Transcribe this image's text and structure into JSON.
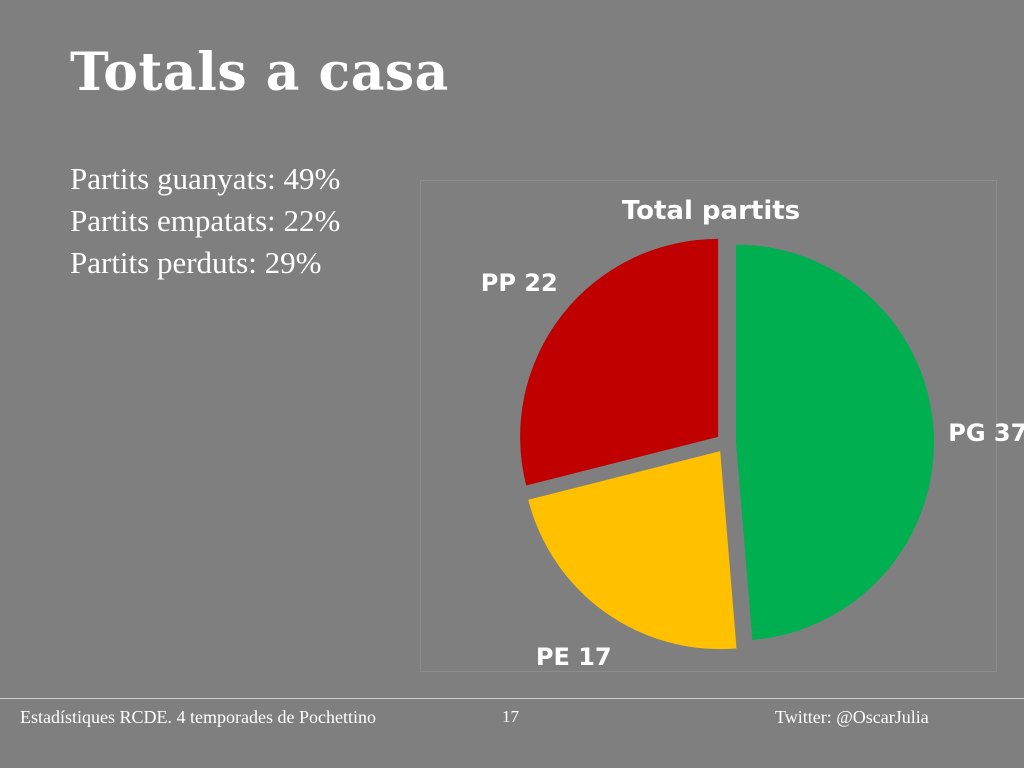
{
  "slide": {
    "title": "Totals a casa",
    "bullets": [
      "Partits guanyats: 49%",
      "Partits empatats: 22%",
      "Partits perduts: 29%"
    ]
  },
  "chart_data": {
    "type": "pie",
    "title": "Total partits",
    "slices": [
      {
        "label": "PG 37",
        "value": 37,
        "color": "#00b050"
      },
      {
        "label": "PE 17",
        "value": 17,
        "color": "#ffc000"
      },
      {
        "label": "PP 22",
        "value": 22,
        "color": "#c00000"
      }
    ],
    "exploded": true,
    "legend": "none"
  },
  "footer": {
    "left": "Estadístiques RCDE. 4 temporades de Pochettino",
    "page": "17",
    "right": "Twitter: @OscarJulia"
  },
  "colors": {
    "background": "#7f7f7f",
    "text": "#ffffff"
  }
}
